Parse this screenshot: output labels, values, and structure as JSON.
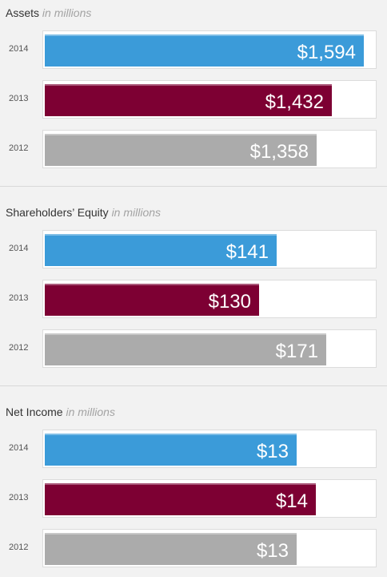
{
  "colors": {
    "2014": "#3b9bd9",
    "2013": "#7d0033",
    "2012": "#ababab"
  },
  "chart_data": [
    {
      "type": "bar",
      "orientation": "horizontal",
      "title": "Assets",
      "unit_label": "in millions",
      "categories": [
        "2014",
        "2013",
        "2012"
      ],
      "values": [
        1594,
        1432,
        1358
      ],
      "labels": [
        "$1,594",
        "$1,432",
        "$1,358"
      ],
      "xlim": [
        0,
        1645
      ]
    },
    {
      "type": "bar",
      "orientation": "horizontal",
      "title": "Shareholders’ Equity",
      "unit_label": "in millions",
      "categories": [
        "2014",
        "2013",
        "2012"
      ],
      "values": [
        141,
        130,
        171
      ],
      "labels": [
        "$141",
        "$130",
        "$171"
      ],
      "xlim": [
        0,
        200
      ]
    },
    {
      "type": "bar",
      "orientation": "horizontal",
      "title": "Net Income",
      "unit_label": "in millions",
      "categories": [
        "2014",
        "2013",
        "2012"
      ],
      "values": [
        13,
        14,
        13
      ],
      "labels": [
        "$13",
        "$14",
        "$13"
      ],
      "xlim": [
        0,
        17
      ]
    }
  ]
}
